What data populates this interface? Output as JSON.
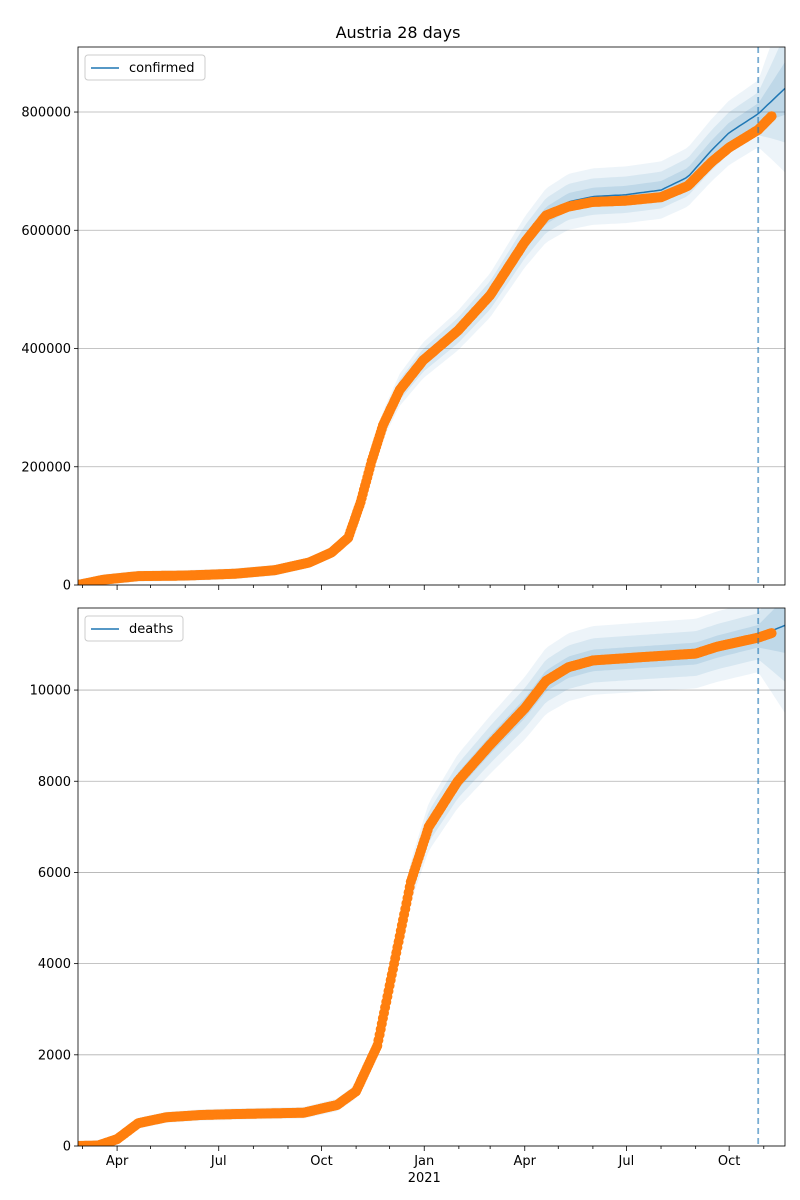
{
  "chart_data": [
    {
      "type": "line",
      "title": "Austria 28 days",
      "legend": {
        "position": "top-left",
        "entries": [
          "confirmed"
        ]
      },
      "grid": "y",
      "ylim": [
        0,
        910000
      ],
      "yticks": [
        0,
        200000,
        400000,
        600000,
        800000
      ],
      "ytick_labels": [
        "0",
        "200000",
        "400000",
        "600000",
        "800000"
      ],
      "xlim": [
        "2020-02-26",
        "2021-11-20"
      ],
      "forecast_start": "2021-10-27",
      "series": [
        {
          "name": "confirmed",
          "kind": "model",
          "color": "#1f77b4",
          "x": [
            "2020-02-26",
            "2020-03-20",
            "2020-04-20",
            "2020-06-01",
            "2020-07-15",
            "2020-08-20",
            "2020-09-20",
            "2020-10-10",
            "2020-10-25",
            "2020-11-05",
            "2020-11-15",
            "2020-11-25",
            "2020-12-10",
            "2020-12-31",
            "2021-01-31",
            "2021-03-01",
            "2021-04-01",
            "2021-04-20",
            "2021-05-10",
            "2021-06-01",
            "2021-06-30",
            "2021-08-01",
            "2021-08-25",
            "2021-09-15",
            "2021-10-01",
            "2021-10-27",
            "2021-11-20"
          ],
          "y": [
            0,
            9000,
            15000,
            16000,
            19000,
            25000,
            38000,
            55000,
            80000,
            140000,
            210000,
            270000,
            330000,
            380000,
            430000,
            490000,
            580000,
            625000,
            648000,
            657000,
            660000,
            668000,
            690000,
            735000,
            765000,
            797000,
            840000
          ]
        },
        {
          "name": "",
          "kind": "observed",
          "color": "#ff7f0e",
          "x": [
            "2020-02-26",
            "2020-03-20",
            "2020-04-20",
            "2020-06-01",
            "2020-07-15",
            "2020-08-20",
            "2020-09-20",
            "2020-10-10",
            "2020-10-25",
            "2020-11-05",
            "2020-11-15",
            "2020-11-25",
            "2020-12-10",
            "2020-12-31",
            "2021-01-31",
            "2021-03-01",
            "2021-04-01",
            "2021-04-20",
            "2021-05-10",
            "2021-06-01",
            "2021-06-30",
            "2021-08-01",
            "2021-08-25",
            "2021-09-15",
            "2021-10-01",
            "2021-10-27",
            "2021-11-08"
          ],
          "y": [
            0,
            9000,
            15000,
            16000,
            19000,
            25000,
            38000,
            55000,
            80000,
            140000,
            210000,
            270000,
            330000,
            380000,
            430000,
            490000,
            580000,
            625000,
            640000,
            648000,
            650000,
            656000,
            675000,
            715000,
            740000,
            770000,
            793000
          ]
        }
      ]
    },
    {
      "type": "line",
      "title": "",
      "legend": {
        "position": "top-left",
        "entries": [
          "deaths"
        ]
      },
      "grid": "y",
      "ylim": [
        0,
        11800
      ],
      "yticks": [
        0,
        2000,
        4000,
        6000,
        8000,
        10000
      ],
      "ytick_labels": [
        "0",
        "2000",
        "4000",
        "6000",
        "8000",
        "10000"
      ],
      "xlim": [
        "2020-02-26",
        "2021-11-20"
      ],
      "xtick_labels": [
        "Apr",
        "Jul",
        "Oct",
        "Jan",
        "Apr",
        "Jul",
        "Oct"
      ],
      "xtick_dates": [
        "2020-04-01",
        "2020-07-01",
        "2020-10-01",
        "2021-01-01",
        "2021-04-01",
        "2021-07-01",
        "2021-10-01"
      ],
      "xtick_sublabel": "2021",
      "forecast_start": "2021-10-27",
      "series": [
        {
          "name": "deaths",
          "kind": "model",
          "color": "#1f77b4",
          "x": [
            "2020-02-26",
            "2020-03-15",
            "2020-04-01",
            "2020-04-20",
            "2020-05-15",
            "2020-06-15",
            "2020-07-15",
            "2020-09-15",
            "2020-10-15",
            "2020-11-01",
            "2020-11-20",
            "2020-12-05",
            "2020-12-20",
            "2021-01-05",
            "2021-01-31",
            "2021-03-01",
            "2021-04-01",
            "2021-04-20",
            "2021-05-10",
            "2021-06-01",
            "2021-07-01",
            "2021-08-01",
            "2021-09-01",
            "2021-09-20",
            "2021-10-27",
            "2021-11-20"
          ],
          "y": [
            0,
            10,
            150,
            500,
            630,
            680,
            700,
            730,
            900,
            1200,
            2200,
            4000,
            5800,
            7000,
            8000,
            8800,
            9600,
            10200,
            10500,
            10650,
            10700,
            10750,
            10800,
            10950,
            11180,
            11420
          ]
        },
        {
          "name": "",
          "kind": "observed",
          "color": "#ff7f0e",
          "x": [
            "2020-02-26",
            "2020-03-15",
            "2020-04-01",
            "2020-04-20",
            "2020-05-15",
            "2020-06-15",
            "2020-07-15",
            "2020-09-15",
            "2020-10-15",
            "2020-11-01",
            "2020-11-20",
            "2020-12-05",
            "2020-12-20",
            "2021-01-05",
            "2021-01-31",
            "2021-03-01",
            "2021-04-01",
            "2021-04-20",
            "2021-05-10",
            "2021-06-01",
            "2021-07-01",
            "2021-08-01",
            "2021-09-01",
            "2021-09-20",
            "2021-10-27",
            "2021-11-08"
          ],
          "y": [
            0,
            10,
            150,
            500,
            630,
            680,
            700,
            730,
            900,
            1200,
            2200,
            4000,
            5800,
            7000,
            8000,
            8800,
            9600,
            10200,
            10500,
            10650,
            10700,
            10750,
            10800,
            10950,
            11150,
            11250
          ]
        }
      ]
    }
  ]
}
